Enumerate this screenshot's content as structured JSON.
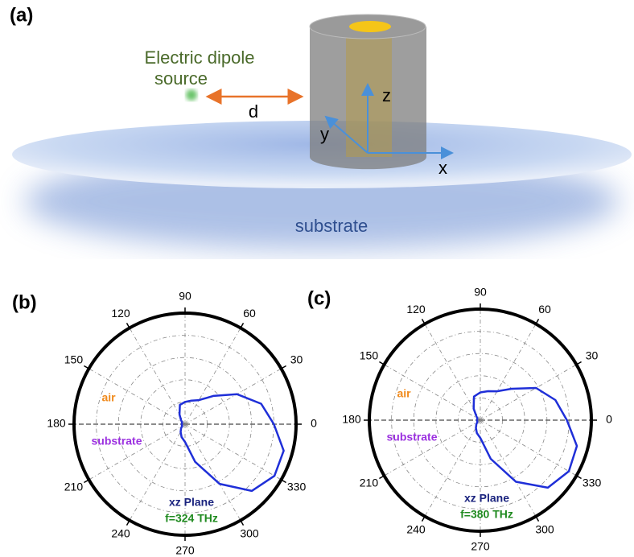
{
  "schematic": {
    "panel": "(a)",
    "source_label": [
      "Electric dipole",
      "source"
    ],
    "distance": "d",
    "axes": {
      "z": "z",
      "y": "y",
      "x": "x"
    },
    "substrate": "substrate"
  },
  "chart_data": [
    {
      "type": "polar",
      "panel": "(b)",
      "theta": [
        0,
        15,
        30,
        45,
        60,
        75,
        90,
        105,
        120,
        135,
        150,
        165,
        180,
        195,
        210,
        225,
        240,
        255,
        270,
        285,
        300,
        315,
        330,
        345,
        360
      ],
      "values": [
        0.8,
        0.71,
        0.54,
        0.36,
        0.25,
        0.22,
        0.2,
        0.18,
        0.1,
        0.05,
        0.03,
        0.03,
        0.03,
        0.03,
        0.03,
        0.05,
        0.08,
        0.12,
        0.16,
        0.35,
        0.62,
        0.85,
        0.93,
        0.92,
        0.8
      ],
      "color": "#1f2fd8",
      "rlim": [
        0,
        1
      ],
      "rticks": [
        0.2,
        0.4,
        0.6,
        0.8
      ],
      "thetaticks": [
        0,
        30,
        60,
        90,
        120,
        150,
        180,
        210,
        240,
        270,
        300,
        330
      ],
      "annotations": [
        {
          "text": "air",
          "color": "#f08a1c"
        },
        {
          "text": "substrate",
          "color": "#9b30e0"
        },
        {
          "text": "xz Plane",
          "color": "#1a237e"
        },
        {
          "text": "f=324 THz",
          "color": "#1f8a1f"
        }
      ]
    },
    {
      "type": "polar",
      "panel": "(c)",
      "theta": [
        0,
        15,
        30,
        45,
        60,
        75,
        90,
        105,
        120,
        135,
        150,
        165,
        180,
        195,
        210,
        225,
        240,
        255,
        270,
        285,
        300,
        315,
        330,
        345,
        360
      ],
      "values": [
        0.78,
        0.7,
        0.58,
        0.4,
        0.3,
        0.27,
        0.25,
        0.22,
        0.12,
        0.05,
        0.03,
        0.03,
        0.03,
        0.03,
        0.03,
        0.05,
        0.08,
        0.12,
        0.16,
        0.36,
        0.64,
        0.86,
        0.92,
        0.9,
        0.78
      ],
      "color": "#1f2fd8",
      "rlim": [
        0,
        1
      ],
      "rticks": [
        0.2,
        0.4,
        0.6,
        0.8
      ],
      "thetaticks": [
        0,
        30,
        60,
        90,
        120,
        150,
        180,
        210,
        240,
        270,
        300,
        330
      ],
      "annotations": [
        {
          "text": "air",
          "color": "#f08a1c"
        },
        {
          "text": "substrate",
          "color": "#9b30e0"
        },
        {
          "text": "xz Plane",
          "color": "#1a237e"
        },
        {
          "text": "f=380 THz",
          "color": "#1f8a1f"
        }
      ]
    }
  ]
}
